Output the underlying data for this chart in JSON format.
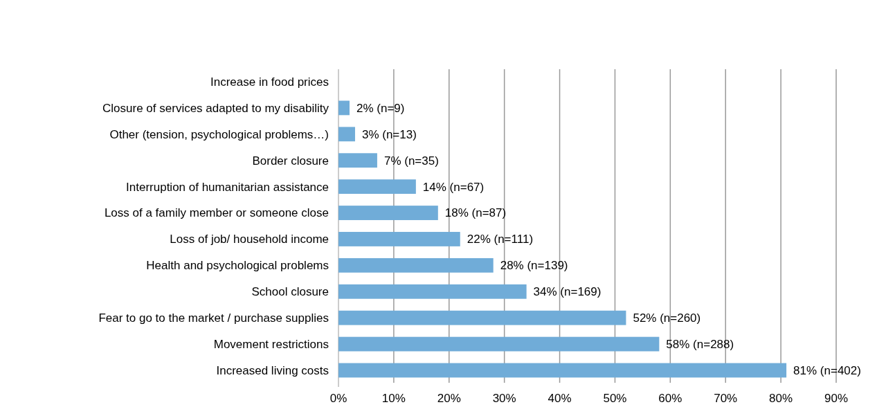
{
  "chart_data": {
    "type": "bar",
    "orientation": "horizontal",
    "categories": [
      "Increase in food prices",
      "Closure of services adapted to my disability",
      "Other (tension, psychological problems…)",
      "Border closure",
      "Interruption of humanitarian assistance",
      "Loss of a family member or someone close",
      "Loss of job/ household income",
      "Health and psychological problems",
      "School closure",
      "Fear to go to the market / purchase supplies",
      "Movement restrictions",
      "Increased living costs"
    ],
    "values": [
      null,
      2,
      3,
      7,
      14,
      18,
      22,
      28,
      34,
      52,
      58,
      81
    ],
    "value_labels": [
      null,
      "2% (n=9)",
      "3% (n=13)",
      "7% (n=35)",
      "14% (n=67)",
      "18% (n=87)",
      "22% (n=111)",
      "28% (n=139)",
      "34% (n=169)",
      "52% (n=260)",
      "58% (n=288)",
      "81% (n=402)"
    ],
    "color": "#70acd8",
    "xlim": [
      0,
      90
    ],
    "xticks": [
      {
        "value": 0,
        "label": "0%"
      },
      {
        "value": 10,
        "label": "10%"
      },
      {
        "value": 20,
        "label": "20%"
      },
      {
        "value": 30,
        "label": "30%"
      },
      {
        "value": 40,
        "label": "40%"
      },
      {
        "value": 50,
        "label": "50%"
      },
      {
        "value": 60,
        "label": "60%"
      },
      {
        "value": 70,
        "label": "70%"
      },
      {
        "value": 80,
        "label": "80%"
      },
      {
        "value": 90,
        "label": "90%"
      }
    ],
    "grid": "x"
  }
}
